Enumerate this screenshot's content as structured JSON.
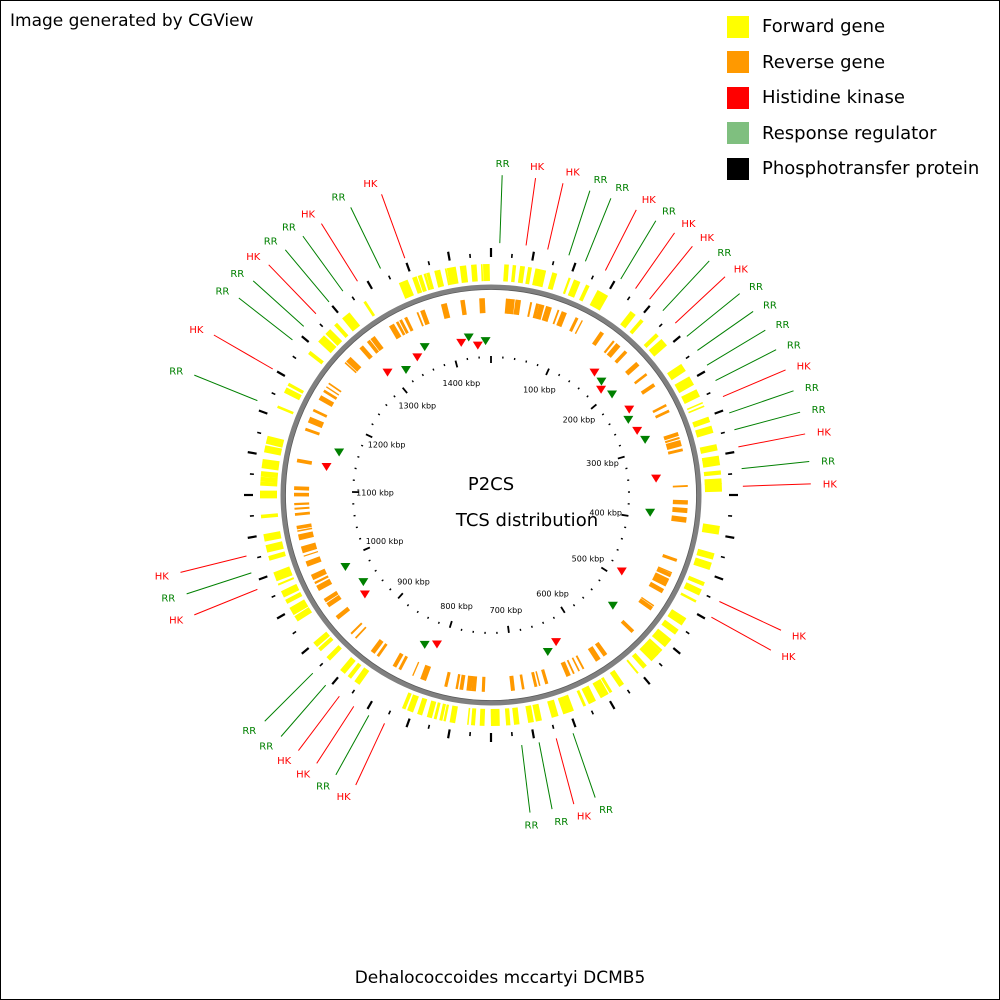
{
  "credit": "Image generated by CGView",
  "legend": [
    {
      "label": "Forward gene",
      "color": "#ffff00"
    },
    {
      "label": "Reverse gene",
      "color": "#ff9900"
    },
    {
      "label": "Histidine kinase",
      "color": "#ff0000"
    },
    {
      "label": "Response regulator",
      "color": "#7fbf7f"
    },
    {
      "label": "Phosphotransfer protein",
      "color": "#000000"
    }
  ],
  "center": {
    "line1": "P2CS",
    "line2": "TCS distribution"
  },
  "organism": "Dehalococcoides mccartyi DCMB5",
  "genome": {
    "length_kbp": 1460,
    "tick_labels": [
      "100 kbp",
      "200 kbp",
      "300 kbp",
      "400 kbp",
      "500 kbp",
      "600 kbp",
      "700 kbp",
      "800 kbp",
      "900 kbp",
      "1000 kbp",
      "1100 kbp",
      "1200 kbp",
      "1300 kbp",
      "1400 kbp"
    ]
  },
  "colors": {
    "hk": "#ff0000",
    "rr": "#008000",
    "backbone": "#808080",
    "forward": "#ffff00",
    "reverse": "#ff9900",
    "ticks": "#000000"
  },
  "feature_labels": [
    {
      "text": "RR",
      "type": "rr"
    },
    {
      "text": "HK",
      "type": "hk"
    },
    {
      "text": "HK",
      "type": "hk"
    },
    {
      "text": "RR",
      "type": "rr"
    },
    {
      "text": "RR",
      "type": "rr"
    },
    {
      "text": "HK",
      "type": "hk"
    },
    {
      "text": "RR",
      "type": "rr"
    },
    {
      "text": "HK",
      "type": "hk"
    },
    {
      "text": "HK",
      "type": "hk"
    },
    {
      "text": "RR",
      "type": "rr"
    },
    {
      "text": "HK",
      "type": "hk"
    },
    {
      "text": "RR",
      "type": "rr"
    },
    {
      "text": "RR",
      "type": "rr"
    },
    {
      "text": "RR",
      "type": "rr"
    },
    {
      "text": "RR",
      "type": "rr"
    },
    {
      "text": "HK",
      "type": "hk"
    },
    {
      "text": "RR",
      "type": "rr"
    },
    {
      "text": "RR",
      "type": "rr"
    },
    {
      "text": "HK",
      "type": "hk"
    },
    {
      "text": "RR",
      "type": "rr"
    },
    {
      "text": "HK",
      "type": "hk"
    },
    {
      "text": "HK",
      "type": "hk"
    },
    {
      "text": "HK",
      "type": "hk"
    },
    {
      "text": "RR",
      "type": "rr"
    },
    {
      "text": "HK",
      "type": "hk"
    },
    {
      "text": "RR",
      "type": "rr"
    },
    {
      "text": "RR",
      "type": "rr"
    },
    {
      "text": "HK",
      "type": "hk"
    },
    {
      "text": "RR",
      "type": "rr"
    },
    {
      "text": "HK",
      "type": "hk"
    },
    {
      "text": "HK",
      "type": "hk"
    },
    {
      "text": "RR",
      "type": "rr"
    },
    {
      "text": "RR",
      "type": "rr"
    },
    {
      "text": "HK",
      "type": "hk"
    },
    {
      "text": "RR",
      "type": "rr"
    },
    {
      "text": "HK",
      "type": "hk"
    },
    {
      "text": "RR",
      "type": "rr"
    },
    {
      "text": "HK",
      "type": "hk"
    },
    {
      "text": "RR",
      "type": "rr"
    },
    {
      "text": "RR",
      "type": "rr"
    },
    {
      "text": "HK",
      "type": "hk"
    },
    {
      "text": "RR",
      "type": "rr"
    },
    {
      "text": "RR",
      "type": "rr"
    },
    {
      "text": "HK",
      "type": "hk"
    },
    {
      "text": "RR",
      "type": "rr"
    },
    {
      "text": "HK",
      "type": "hk"
    }
  ]
}
